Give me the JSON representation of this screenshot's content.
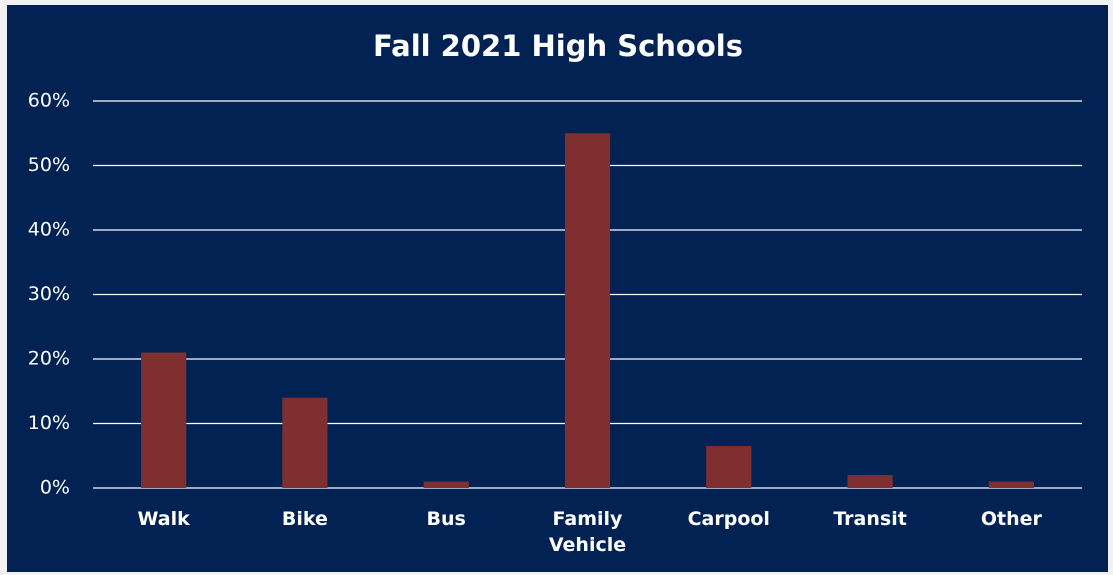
{
  "chart_data": {
    "type": "bar",
    "title": "Fall 2021 High Schools",
    "categories": [
      "Walk",
      "Bike",
      "Bus",
      "Family Vehicle",
      "Carpool",
      "Transit",
      "Other"
    ],
    "values": [
      21,
      14,
      1,
      55,
      6.5,
      2,
      1
    ],
    "color": "#7f2f2f",
    "ylim": [
      0,
      60
    ],
    "yticks": [
      {
        "value": 0,
        "label": "0%"
      },
      {
        "value": 10,
        "label": "10%"
      },
      {
        "value": 20,
        "label": "20%"
      },
      {
        "value": 30,
        "label": "30%"
      },
      {
        "value": 40,
        "label": "40%"
      },
      {
        "value": 50,
        "label": "50%"
      },
      {
        "value": 60,
        "label": "60%"
      }
    ],
    "grid": true
  }
}
